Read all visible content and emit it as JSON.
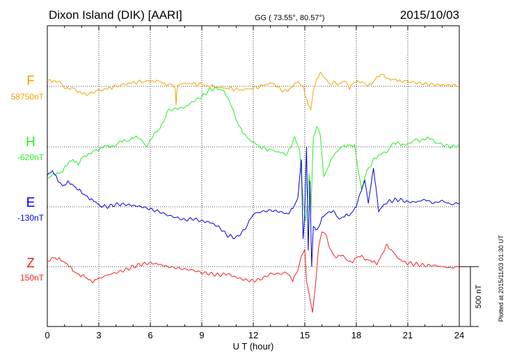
{
  "chart_data": {
    "type": "line",
    "title": "Dixon Island (DIK)  [AARI]",
    "coordinates": "GG ( 73.55°,  80.57°)",
    "date": "2015/10/03",
    "xlabel": "U T (hour)",
    "xlim": [
      0,
      24
    ],
    "x_ticks": [
      0,
      3,
      6,
      9,
      12,
      15,
      18,
      21,
      24
    ],
    "x_tick_labels": [
      "0",
      "3",
      "6",
      "9",
      "12",
      "15",
      "18",
      "21",
      "24"
    ],
    "y_units": "nT",
    "scale_bar_label": "500 nT",
    "scale_bar_value": 500,
    "plotted_note": "Plotted at 2015/11/03 01:30 UT",
    "grid": true,
    "series": [
      {
        "name": "F",
        "baseline_label": "58750nT",
        "color": "#f5a300",
        "x": [
          0,
          0.3,
          0.6,
          0.8,
          1.0,
          1.3,
          1.6,
          2.0,
          2.3,
          2.5,
          2.8,
          3.2,
          3.6,
          4.0,
          4.4,
          4.8,
          5.2,
          5.6,
          6.0,
          6.3,
          6.6,
          6.9,
          7.2,
          7.45,
          7.5,
          7.55,
          7.6,
          7.8,
          8.2,
          8.6,
          9.0,
          9.3,
          9.6,
          10.0,
          10.4,
          10.8,
          11.2,
          11.6,
          12.0,
          12.4,
          12.8,
          13.2,
          13.6,
          14.0,
          14.4,
          14.7,
          14.9,
          15.0,
          15.1,
          15.2,
          15.35,
          15.5,
          15.7,
          15.9,
          16.0,
          16.2,
          16.5,
          16.8,
          17.0,
          17.2,
          17.4,
          17.6,
          17.8,
          18.0,
          18.3,
          18.6,
          18.9,
          19.2,
          19.4,
          19.6,
          19.8,
          20.0,
          20.3,
          20.6,
          21.0,
          21.5,
          22.0,
          22.5,
          23.0,
          23.5,
          24.0
        ],
        "values": [
          50,
          40,
          45,
          20,
          -10,
          -15,
          -25,
          -60,
          -70,
          -55,
          -40,
          -30,
          -15,
          0,
          15,
          25,
          35,
          40,
          45,
          45,
          35,
          20,
          15,
          -10,
          -170,
          -40,
          5,
          20,
          25,
          20,
          15,
          5,
          0,
          -10,
          -15,
          -20,
          -30,
          -25,
          -15,
          0,
          20,
          25,
          -30,
          -40,
          20,
          30,
          0,
          -60,
          -100,
          -160,
          -190,
          -40,
          60,
          120,
          100,
          60,
          20,
          35,
          15,
          40,
          30,
          -15,
          30,
          45,
          35,
          10,
          25,
          70,
          90,
          100,
          70,
          60,
          50,
          45,
          40,
          30,
          20,
          15,
          10,
          10,
          5
        ]
      },
      {
        "name": "H",
        "baseline_label": "-620nT",
        "color": "#22ee22",
        "x": [
          0,
          0.3,
          0.6,
          0.9,
          1.2,
          1.5,
          1.8,
          2.1,
          2.4,
          2.7,
          3.0,
          3.3,
          3.6,
          3.9,
          4.2,
          4.5,
          4.8,
          5.1,
          5.4,
          5.6,
          5.8,
          6.0,
          6.2,
          6.5,
          6.8,
          7.0,
          7.5,
          8.0,
          8.5,
          9.0,
          9.5,
          10.0,
          10.3,
          10.7,
          11.0,
          11.3,
          11.6,
          12.0,
          12.4,
          12.8,
          13.2,
          13.6,
          14.0,
          14.4,
          14.7,
          14.85,
          14.95,
          15.05,
          15.15,
          15.25,
          15.35,
          15.5,
          15.7,
          15.9,
          16.1,
          16.4,
          16.7,
          17.0,
          17.2,
          17.4,
          17.6,
          17.9,
          18.1,
          18.3,
          18.6,
          19.0,
          19.4,
          19.8,
          20.2,
          20.6,
          21.0,
          21.4,
          21.8,
          22.2,
          22.6,
          23.0,
          23.5,
          24.0
        ],
        "values": [
          -260,
          -240,
          -220,
          -200,
          -140,
          -100,
          -150,
          -80,
          -60,
          -40,
          -20,
          10,
          0,
          10,
          40,
          50,
          60,
          80,
          70,
          30,
          10,
          60,
          100,
          150,
          220,
          300,
          320,
          330,
          380,
          420,
          480,
          490,
          460,
          360,
          220,
          150,
          80,
          40,
          0,
          -20,
          -30,
          -50,
          -60,
          80,
          -30,
          -350,
          -500,
          -620,
          -480,
          -220,
          -550,
          80,
          180,
          100,
          -250,
          -160,
          -60,
          -20,
          0,
          10,
          20,
          10,
          -190,
          -350,
          -210,
          -110,
          -60,
          -40,
          40,
          20,
          20,
          60,
          50,
          80,
          40,
          20,
          0,
          10
        ]
      },
      {
        "name": "E",
        "baseline_label": "-130nT",
        "color": "#0000dd",
        "x": [
          0,
          0.3,
          0.6,
          0.9,
          1.2,
          1.5,
          1.8,
          2.1,
          2.4,
          2.7,
          3.0,
          3.5,
          4.0,
          4.5,
          5.0,
          5.5,
          6.0,
          6.5,
          7.0,
          7.5,
          8.0,
          8.5,
          9.0,
          9.5,
          10.0,
          10.5,
          11.0,
          11.5,
          12.0,
          12.5,
          13.0,
          13.5,
          14.0,
          14.3,
          14.6,
          14.8,
          14.9,
          15.0,
          15.1,
          15.2,
          15.3,
          15.4,
          15.5,
          15.65,
          15.8,
          16.0,
          16.3,
          16.6,
          17.0,
          17.3,
          17.6,
          18.0,
          18.3,
          18.5,
          18.7,
          19.0,
          19.3,
          19.6,
          20.0,
          20.5,
          21.0,
          21.5,
          22.0,
          22.5,
          23.0,
          23.5,
          24.0
        ],
        "values": [
          270,
          300,
          220,
          180,
          200,
          180,
          150,
          100,
          80,
          50,
          10,
          0,
          20,
          20,
          10,
          0,
          -20,
          -40,
          -70,
          -90,
          -110,
          -100,
          -120,
          -130,
          -170,
          -240,
          -260,
          -190,
          -60,
          -40,
          -30,
          -40,
          -60,
          -20,
          80,
          400,
          -280,
          -50,
          500,
          -360,
          220,
          -500,
          -150,
          -200,
          -180,
          -100,
          -50,
          -30,
          -100,
          -80,
          -70,
          0,
          150,
          220,
          30,
          330,
          -40,
          20,
          50,
          60,
          40,
          40,
          60,
          30,
          50,
          20,
          30
        ]
      },
      {
        "name": "Z",
        "baseline_label": "150nT",
        "color": "#ee2222",
        "x": [
          0,
          0.3,
          0.6,
          0.9,
          1.2,
          1.5,
          1.8,
          2.1,
          2.4,
          2.7,
          3.0,
          3.5,
          4.0,
          4.5,
          5.0,
          5.5,
          6.0,
          6.5,
          7.0,
          7.5,
          8.0,
          8.5,
          9.0,
          9.5,
          10.0,
          10.5,
          11.0,
          11.5,
          12.0,
          12.5,
          13.0,
          13.5,
          14.0,
          14.3,
          14.6,
          14.8,
          15.0,
          15.1,
          15.2,
          15.3,
          15.45,
          15.6,
          15.8,
          16.0,
          16.2,
          16.5,
          16.8,
          17.1,
          17.4,
          17.7,
          18.0,
          18.3,
          18.6,
          18.9,
          19.2,
          19.5,
          19.8,
          20.2,
          20.6,
          21.0,
          21.5,
          22.0,
          22.5,
          23.0,
          23.5,
          24.0
        ],
        "values": [
          40,
          80,
          60,
          50,
          20,
          -40,
          -60,
          -80,
          -110,
          -120,
          -100,
          -70,
          -50,
          -30,
          0,
          20,
          30,
          20,
          0,
          -10,
          -20,
          -30,
          -50,
          -60,
          -70,
          -60,
          -90,
          -110,
          -120,
          -100,
          -60,
          -60,
          -50,
          -120,
          -30,
          80,
          150,
          -120,
          -200,
          -260,
          -380,
          -200,
          150,
          300,
          280,
          130,
          80,
          100,
          60,
          40,
          70,
          90,
          60,
          40,
          30,
          100,
          180,
          110,
          50,
          30,
          20,
          10,
          10,
          0,
          -10,
          0
        ]
      }
    ]
  }
}
